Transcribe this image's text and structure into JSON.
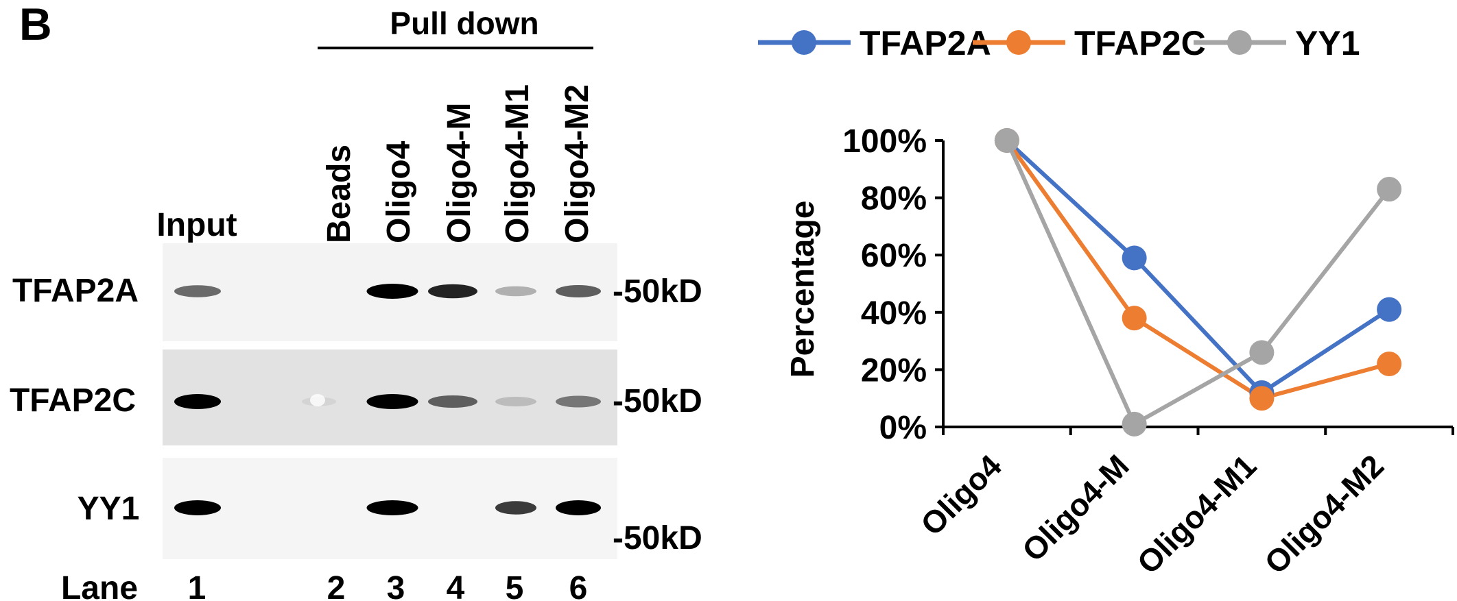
{
  "panel_label": "B",
  "blot": {
    "pulldown_label": "Pull down",
    "input_label": "Input",
    "lanes": [
      {
        "number": "1",
        "name": ""
      },
      {
        "number": "2",
        "name": "Beads"
      },
      {
        "number": "3",
        "name": "Oligo4"
      },
      {
        "number": "4",
        "name": "Oligo4-M"
      },
      {
        "number": "5",
        "name": "Oligo4-M1"
      },
      {
        "number": "6",
        "name": "Oligo4-M2"
      }
    ],
    "lane_row_label": "Lane",
    "rows": [
      {
        "protein": "TFAP2A",
        "marker": "-50kD",
        "band_intensity": [
          0.55,
          0,
          1.0,
          0.85,
          0.25,
          0.6
        ]
      },
      {
        "protein": "TFAP2C",
        "marker": "-50kD",
        "band_intensity": [
          1.0,
          0.1,
          1.0,
          0.6,
          0.2,
          0.5
        ]
      },
      {
        "protein": "YY1",
        "marker": "-50kD",
        "band_intensity": [
          1.0,
          0,
          1.0,
          0,
          0.75,
          1.0
        ]
      }
    ]
  },
  "chart_data": {
    "type": "line",
    "categories": [
      "Oligo4",
      "Oligo4-M",
      "Oligo4-M1",
      "Oligo4-M2"
    ],
    "series": [
      {
        "name": "TFAP2A",
        "color": "#4472C4",
        "values": [
          100,
          59,
          12,
          41
        ]
      },
      {
        "name": "TFAP2C",
        "color": "#ED7D31",
        "values": [
          100,
          38,
          10,
          22
        ]
      },
      {
        "name": "YY1",
        "color": "#A5A5A5",
        "values": [
          100,
          1,
          26,
          83
        ]
      }
    ],
    "ylabel": "Percentage",
    "xlabel": "",
    "ylim": [
      0,
      100
    ],
    "yticks": [
      "0%",
      "20%",
      "40%",
      "60%",
      "80%",
      "100%"
    ],
    "legend_position": "top",
    "grid": false
  }
}
